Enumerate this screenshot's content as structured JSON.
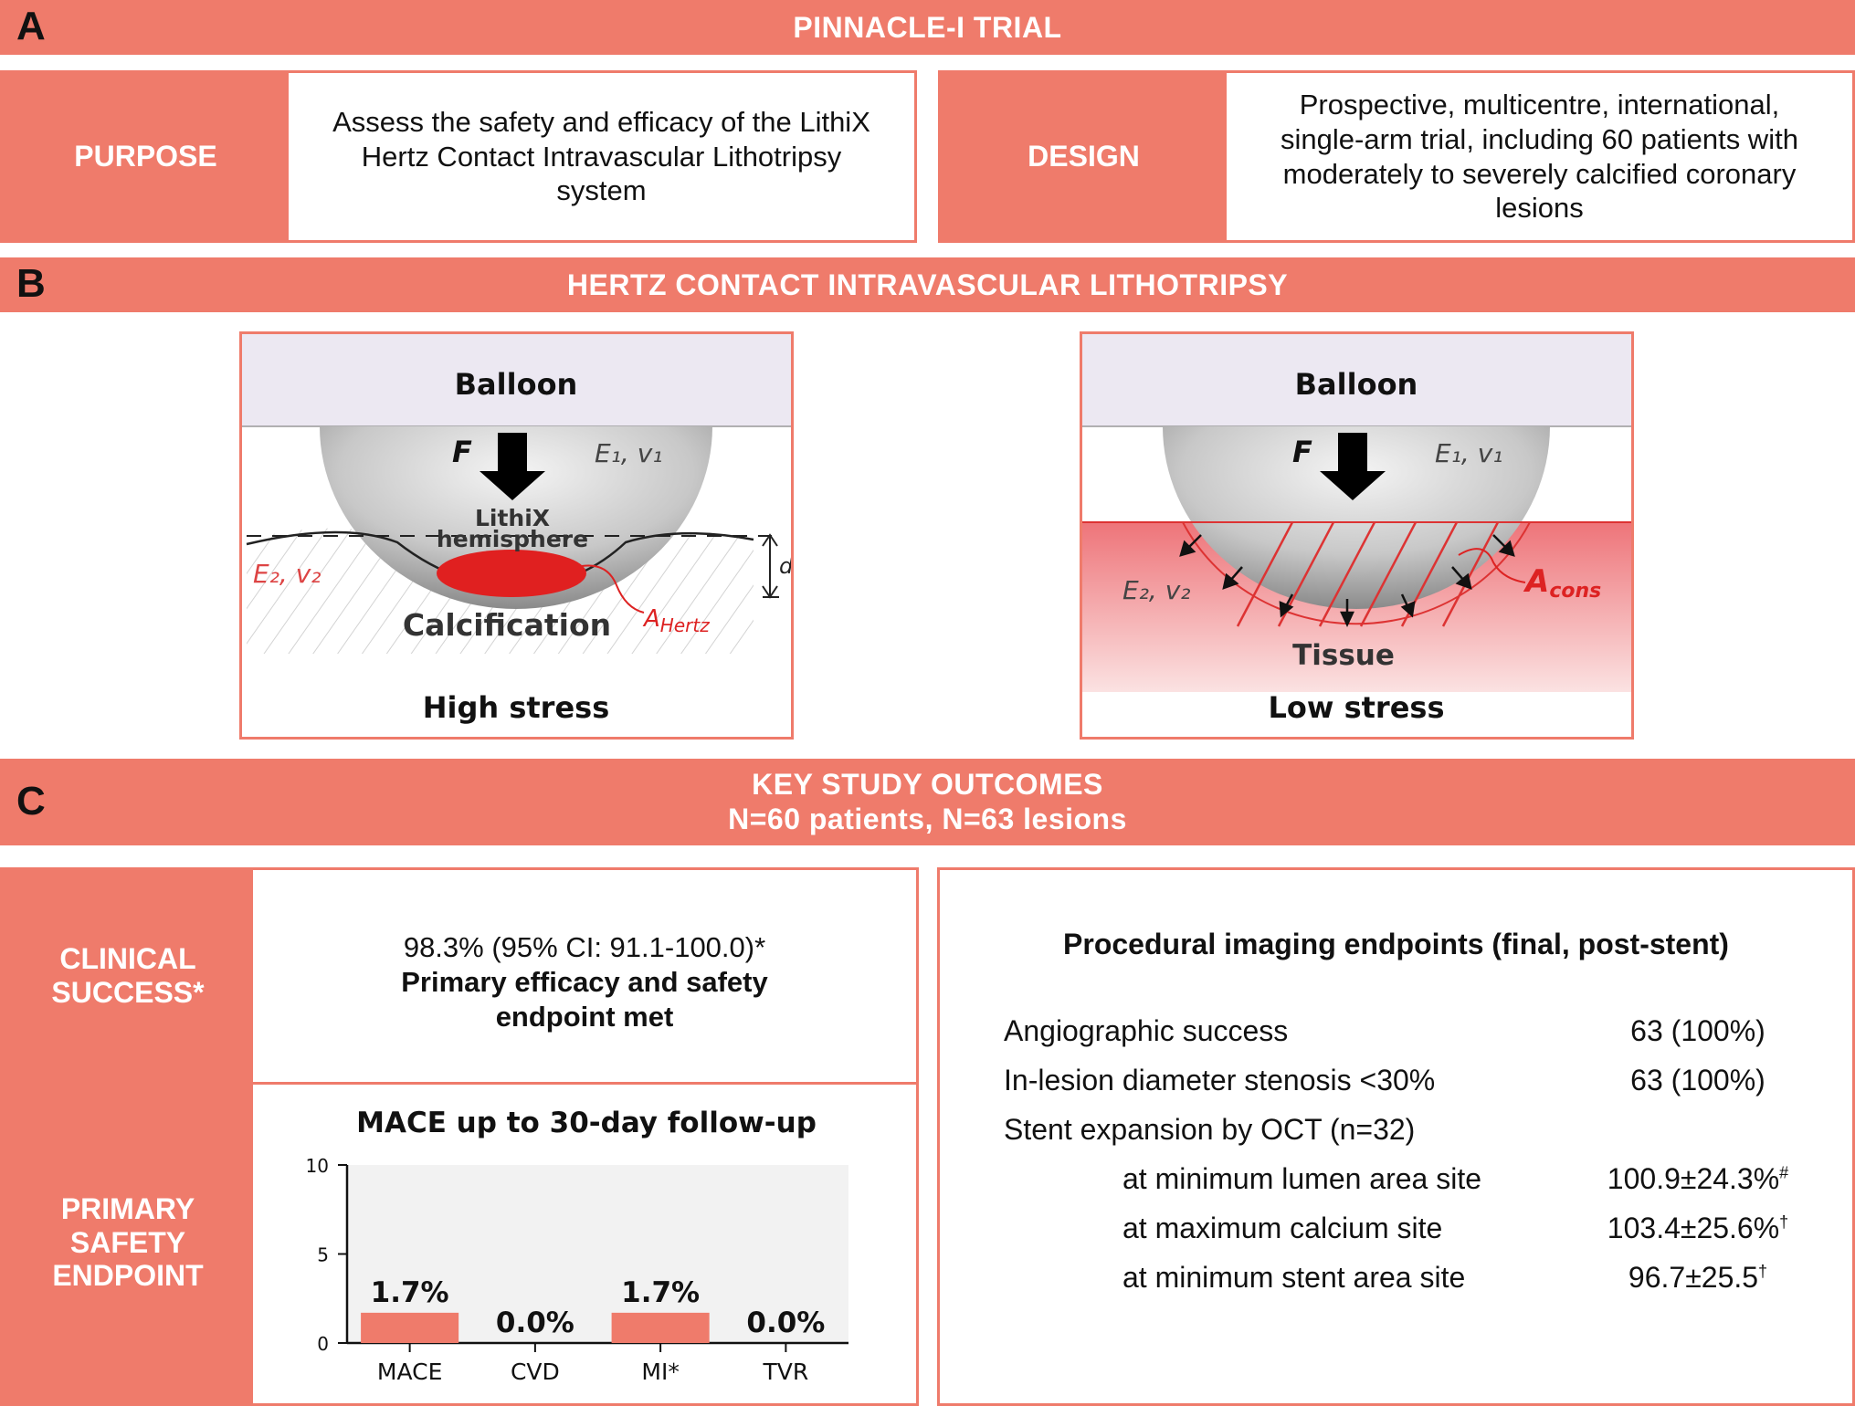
{
  "section_a": {
    "letter": "A",
    "title": "PINNACLE-I TRIAL",
    "purpose_label": "PURPOSE",
    "purpose_text": "Assess the safety and efficacy of the LithiX Hertz Contact Intravascular Lithotripsy system",
    "design_label": "DESIGN",
    "design_text": "Prospective, multicentre, international, single-arm trial, including 60 patients with moderately to severely calcified coronary lesions"
  },
  "section_b": {
    "letter": "B",
    "title": "HERTZ CONTACT INTRAVASCULAR LITHOTRIPSY",
    "left_panel": {
      "header": "Balloon",
      "force": "F",
      "e1": "E₁, v₁",
      "hemisphere_line1": "LithiX",
      "hemisphere_line2": "hemisphere",
      "e2": "E₂, v₂",
      "d": "d",
      "calcification": "Calcification",
      "a_label": "A",
      "a_sub": "Hertz",
      "footer": "High stress"
    },
    "right_panel": {
      "header": "Balloon",
      "force": "F",
      "e1": "E₁, v₁",
      "e2": "E₂, v₂",
      "a_label": "A",
      "a_sub": "cons",
      "tissue": "Tissue",
      "footer": "Low stress"
    }
  },
  "section_c": {
    "letter": "C",
    "title_line1": "KEY STUDY OUTCOMES",
    "title_line2": "N=60 patients, N=63 lesions",
    "clinical_label": "CLINICAL SUCCESS*",
    "clinical_value": "98.3% (95% CI: 91.1-100.0)*",
    "clinical_note_line1": "Primary efficacy and safety",
    "clinical_note_line2": "endpoint met",
    "safety_label": "PRIMARY SAFETY ENDPOINT",
    "imaging_title": "Procedural imaging endpoints (final, post-stent)",
    "imaging_rows": [
      {
        "label": "Angiographic success",
        "value": "63 (100%)",
        "sup": ""
      },
      {
        "label": "In-lesion diameter stenosis <30%",
        "value": "63 (100%)",
        "sup": ""
      },
      {
        "label": "Stent expansion by OCT (n=32)",
        "value": "",
        "sup": ""
      },
      {
        "label": "at minimum lumen area site",
        "value": "100.9±24.3%",
        "sup": "#"
      },
      {
        "label": "at maximum calcium site",
        "value": "103.4±25.6%",
        "sup": "†"
      },
      {
        "label": "at minimum stent area site",
        "value": "96.7±25.5",
        "sup": "†"
      }
    ]
  },
  "chart_data": {
    "type": "bar",
    "title": "MACE up to 30-day follow-up",
    "categories": [
      "MACE",
      "CVD",
      "MI*",
      "TVR"
    ],
    "values": [
      1.7,
      0.0,
      1.7,
      0.0
    ],
    "data_labels": [
      "1.7%",
      "0.0%",
      "1.7%",
      "0.0%"
    ],
    "ylim": [
      0,
      10
    ],
    "yticks": [
      0,
      5,
      10
    ],
    "bar_color": "#ef7b6b",
    "grid": false
  },
  "colors": {
    "accent": "#ef7b6b",
    "balloon_band": "#ece8f2",
    "calcification": "#e02020",
    "tissue": "#f08a8c"
  }
}
